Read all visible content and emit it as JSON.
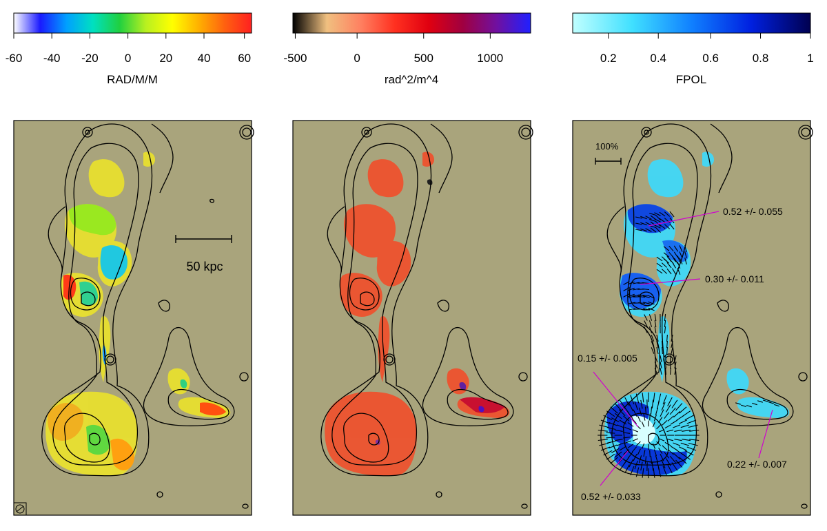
{
  "colorbars": [
    {
      "gradient": [
        "#ffffff",
        "#1a1aff",
        "#00a0ff",
        "#00e0c0",
        "#20d040",
        "#b8f020",
        "#ffff00",
        "#ffb000",
        "#ff6010",
        "#ff2020"
      ],
      "ticks": [
        "-60",
        "-40",
        "-20",
        "0",
        "20",
        "40",
        "60"
      ],
      "label": "RAD/M/M"
    },
    {
      "gradient": [
        "#000000",
        "#f0c080",
        "#ff8060",
        "#ff3020",
        "#e00010",
        "#a00040",
        "#7010a0",
        "#2020ff"
      ],
      "ticks": [
        "-500",
        "0",
        "500",
        "1000"
      ],
      "label": "rad^2/m^4"
    },
    {
      "gradient": [
        "#c0ffff",
        "#40e0ff",
        "#1080ff",
        "#0020e0",
        "#000050"
      ],
      "ticks": [
        "0.2",
        "0.4",
        "0.6",
        "0.8",
        "1"
      ],
      "label": "FPOL"
    }
  ],
  "panels": {
    "background_color": "#a9a47c",
    "scale_bar_label": "50 kpc",
    "vector_scale_label": "100%",
    "annotations": [
      {
        "id": "a1",
        "text": "0.52 +/- 0.055"
      },
      {
        "id": "a2",
        "text": "0.30 +/- 0.011"
      },
      {
        "id": "a3",
        "text": "0.15 +/- 0.005"
      },
      {
        "id": "a4",
        "text": "0.52 +/- 0.033"
      },
      {
        "id": "a5",
        "text": "0.22 +/- 0.007"
      }
    ],
    "annotation_color": "#d000d0"
  }
}
